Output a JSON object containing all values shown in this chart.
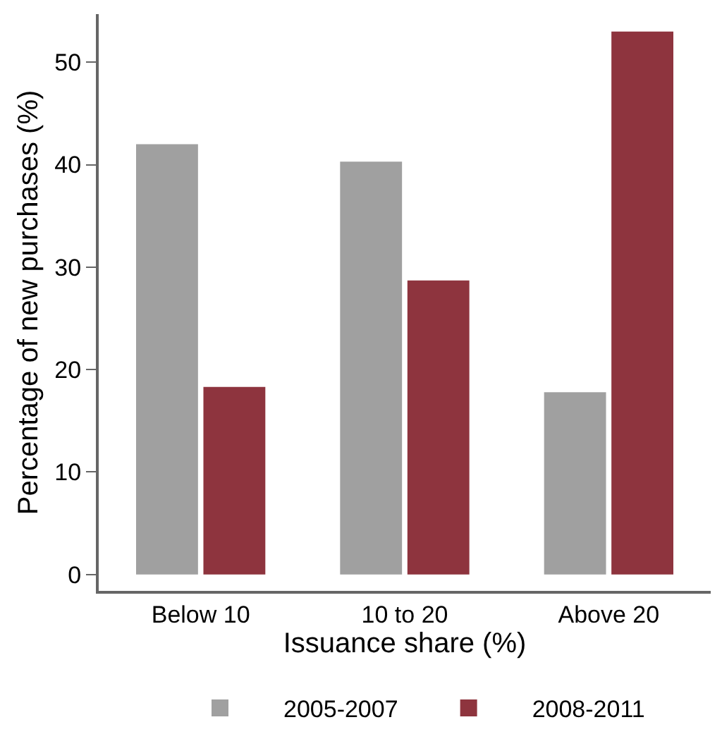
{
  "chart_data": {
    "type": "bar",
    "xlabel": "Issuance share (%)",
    "ylabel": "Percentage of new purchases (%)",
    "categories": [
      "Below 10",
      "10 to 20",
      "Above 20"
    ],
    "series": [
      {
        "name": "2005-2007",
        "color": "#a0a0a0",
        "values": [
          42.0,
          40.3,
          17.8
        ]
      },
      {
        "name": "2008-2011",
        "color": "#8e343e",
        "values": [
          18.3,
          28.7,
          53.0
        ]
      }
    ],
    "ylim": [
      -1.6,
      54.7
    ],
    "yticks": [
      0,
      10,
      20,
      30,
      40,
      50
    ],
    "legend": "bottom"
  }
}
